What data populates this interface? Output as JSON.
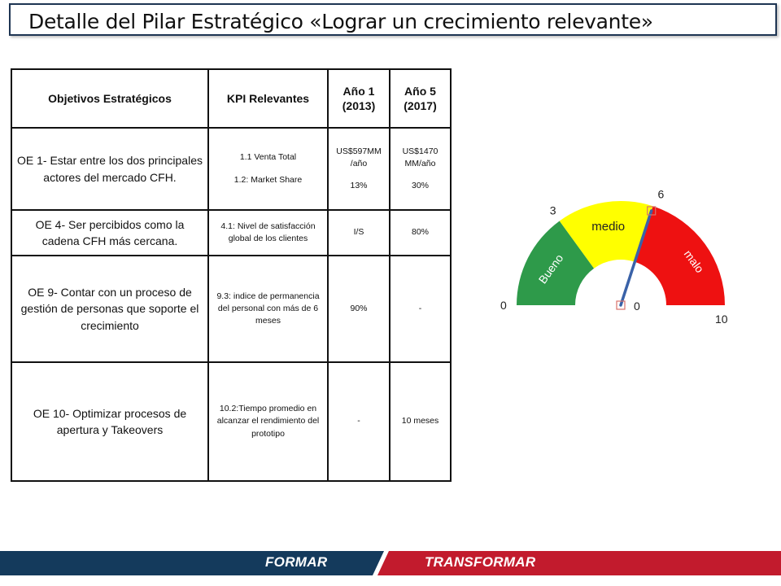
{
  "title": "Detalle del Pilar Estratégico «Lograr un crecimiento relevante»",
  "table": {
    "headers": {
      "objetivos": "Objetivos Estratégicos",
      "kpi": "KPI Relevantes",
      "anio1_line1": "Año 1",
      "anio1_line2": "(2013)",
      "anio5_line1": "Año 5",
      "anio5_line2": "(2017)"
    },
    "rows": [
      {
        "objetivo": "OE 1- Estar entre los dos principales actores del mercado CFH.",
        "kpi_a": "1.1 Venta Total",
        "kpi_b": "1.2: Market Share",
        "anio1_a": "US$597MM /año",
        "anio1_b": "13%",
        "anio5_a": "US$1470 MM/año",
        "anio5_b": "30%"
      },
      {
        "objetivo": "OE 4- Ser percibidos como la cadena CFH más cercana.",
        "kpi": "4.1: Nivel de satisfacción global de los clientes",
        "anio1": "I/S",
        "anio5": "80%"
      },
      {
        "objetivo": "OE 9- Contar con un proceso de gestión de personas que soporte el crecimiento",
        "kpi": "9.3: indice de permanencia del personal con más de 6 meses",
        "anio1": "90%",
        "anio5": "-"
      },
      {
        "objetivo": "OE 10- Optimizar procesos de apertura y Takeovers",
        "kpi": "10.2:Tiempo promedio en alcanzar el rendimiento del prototipo",
        "anio1": "-",
        "anio5": "10 meses"
      }
    ]
  },
  "gauge": {
    "min": 0,
    "max": 10,
    "needle_value": 6,
    "threshold_1": 3,
    "threshold_2": 6,
    "label_min": "0",
    "label_t1": "3",
    "label_t2": "6",
    "label_max": "10",
    "label_center": "0",
    "zone_good": "Bueno",
    "zone_mid": "medio",
    "zone_bad": "malo",
    "color_good": "#2e9a4a",
    "color_mid": "#ffff00",
    "color_bad": "#ee1111",
    "color_needle": "#3a62a8"
  },
  "footer": {
    "left_label": "FORMAR",
    "right_label": "TRANSFORMAR",
    "left_color": "#143a5c",
    "right_color": "#c21b2d"
  }
}
